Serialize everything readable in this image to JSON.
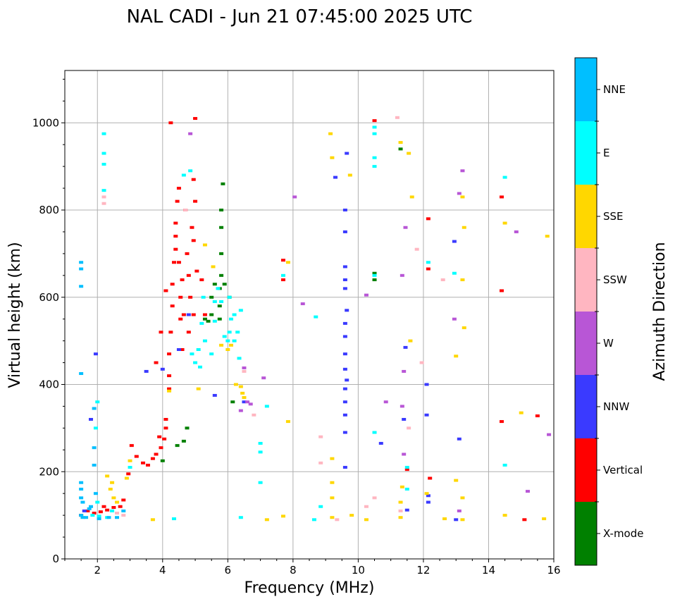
{
  "chart_data": {
    "type": "scatter",
    "title": "NAL CADI - Jun 21 07:45:00 2025 UTC",
    "xlabel": "Frequency (MHz)",
    "ylabel": "Virtual height (km)",
    "xlim": [
      1,
      16
    ],
    "ylim": [
      0,
      1120
    ],
    "xticks": [
      2,
      4,
      6,
      8,
      10,
      12,
      14,
      16
    ],
    "yticks": [
      0,
      200,
      400,
      600,
      800,
      1000
    ],
    "grid": true,
    "colorbar": {
      "label": "Azimuth Direction",
      "categories": [
        {
          "name": "X-mode",
          "color": "#008000"
        },
        {
          "name": "Vertical",
          "color": "#ff0000"
        },
        {
          "name": "NNW",
          "color": "#3a3aff"
        },
        {
          "name": "W",
          "color": "#b856d6"
        },
        {
          "name": "SSW",
          "color": "#ffb6c1"
        },
        {
          "name": "SSE",
          "color": "#ffd700"
        },
        {
          "name": "E",
          "color": "#00ffff"
        },
        {
          "name": "NNE",
          "color": "#00bfff"
        }
      ]
    },
    "series": [
      {
        "name": "X-mode",
        "points": [
          [
            5.75,
            550
          ],
          [
            5.75,
            580
          ],
          [
            5.75,
            620
          ],
          [
            5.8,
            650
          ],
          [
            5.8,
            700
          ],
          [
            5.8,
            760
          ],
          [
            5.8,
            800
          ],
          [
            5.85,
            860
          ],
          [
            5.5,
            560
          ],
          [
            5.5,
            600
          ],
          [
            5.6,
            630
          ],
          [
            5.4,
            545
          ],
          [
            5.3,
            550
          ],
          [
            6.05,
            600
          ],
          [
            6.15,
            360
          ],
          [
            4.75,
            300
          ],
          [
            4.65,
            270
          ],
          [
            4.45,
            260
          ],
          [
            4.0,
            225
          ],
          [
            10.5,
            640
          ],
          [
            10.5,
            655
          ],
          [
            11.3,
            940
          ],
          [
            5.9,
            630
          ]
        ]
      },
      {
        "name": "Vertical",
        "points": [
          [
            1.5,
            100
          ],
          [
            1.7,
            110
          ],
          [
            1.9,
            105
          ],
          [
            2.1,
            108
          ],
          [
            2.3,
            112
          ],
          [
            2.5,
            118
          ],
          [
            2.7,
            120
          ],
          [
            2.8,
            135
          ],
          [
            2.2,
            120
          ],
          [
            2.95,
            195
          ],
          [
            3.05,
            260
          ],
          [
            3.2,
            235
          ],
          [
            3.4,
            220
          ],
          [
            3.55,
            215
          ],
          [
            3.7,
            230
          ],
          [
            3.8,
            240
          ],
          [
            3.95,
            255
          ],
          [
            4.05,
            275
          ],
          [
            4.1,
            300
          ],
          [
            4.1,
            320
          ],
          [
            3.9,
            280
          ],
          [
            3.8,
            450
          ],
          [
            3.95,
            520
          ],
          [
            4.2,
            420
          ],
          [
            4.2,
            470
          ],
          [
            4.25,
            520
          ],
          [
            4.3,
            580
          ],
          [
            4.3,
            630
          ],
          [
            4.35,
            680
          ],
          [
            4.4,
            710
          ],
          [
            4.4,
            770
          ],
          [
            4.45,
            820
          ],
          [
            4.5,
            850
          ],
          [
            4.55,
            600
          ],
          [
            4.6,
            640
          ],
          [
            4.65,
            560
          ],
          [
            4.6,
            480
          ],
          [
            4.75,
            700
          ],
          [
            4.8,
            650
          ],
          [
            4.85,
            600
          ],
          [
            4.9,
            760
          ],
          [
            4.95,
            730
          ],
          [
            5.0,
            820
          ],
          [
            4.95,
            870
          ],
          [
            5.0,
            1010
          ],
          [
            4.25,
            1000
          ],
          [
            4.5,
            680
          ],
          [
            4.7,
            800
          ],
          [
            4.95,
            560
          ],
          [
            5.05,
            660
          ],
          [
            4.8,
            520
          ],
          [
            4.4,
            740
          ],
          [
            4.55,
            550
          ],
          [
            5.2,
            640
          ],
          [
            5.3,
            560
          ],
          [
            7.7,
            640
          ],
          [
            7.7,
            685
          ],
          [
            10.5,
            1005
          ],
          [
            12.15,
            780
          ],
          [
            12.15,
            665
          ],
          [
            12.2,
            185
          ],
          [
            14.4,
            830
          ],
          [
            14.4,
            615
          ],
          [
            14.4,
            315
          ],
          [
            15.1,
            90
          ],
          [
            15.5,
            328
          ],
          [
            11.5,
            205
          ],
          [
            4.2,
            390
          ],
          [
            4.1,
            615
          ]
        ]
      },
      {
        "name": "NNW",
        "points": [
          [
            9.65,
            930
          ],
          [
            9.6,
            800
          ],
          [
            9.6,
            750
          ],
          [
            9.6,
            670
          ],
          [
            9.6,
            640
          ],
          [
            9.6,
            620
          ],
          [
            9.65,
            570
          ],
          [
            9.6,
            540
          ],
          [
            9.6,
            510
          ],
          [
            9.6,
            470
          ],
          [
            9.6,
            435
          ],
          [
            9.65,
            410
          ],
          [
            9.6,
            390
          ],
          [
            9.6,
            360
          ],
          [
            9.6,
            330
          ],
          [
            9.6,
            290
          ],
          [
            9.6,
            210
          ],
          [
            9.3,
            875
          ],
          [
            12.95,
            728
          ],
          [
            13.1,
            275
          ],
          [
            13.0,
            90
          ],
          [
            12.1,
            400
          ],
          [
            12.1,
            330
          ],
          [
            11.4,
            320
          ],
          [
            11.45,
            485
          ],
          [
            11.5,
            112
          ],
          [
            12.15,
            145
          ],
          [
            12.15,
            130
          ],
          [
            10.7,
            265
          ],
          [
            5.6,
            375
          ],
          [
            6.5,
            360
          ],
          [
            4.0,
            435
          ],
          [
            4.5,
            480
          ],
          [
            4.8,
            560
          ],
          [
            3.5,
            430
          ],
          [
            1.6,
            110
          ],
          [
            1.8,
            320
          ],
          [
            1.95,
            470
          ]
        ]
      },
      {
        "name": "W",
        "points": [
          [
            4.85,
            975
          ],
          [
            6.5,
            438
          ],
          [
            6.4,
            340
          ],
          [
            6.6,
            360
          ],
          [
            6.7,
            355
          ],
          [
            8.3,
            585
          ],
          [
            10.25,
            605
          ],
          [
            10.85,
            360
          ],
          [
            11.35,
            650
          ],
          [
            11.45,
            760
          ],
          [
            11.4,
            430
          ],
          [
            11.4,
            240
          ],
          [
            11.35,
            350
          ],
          [
            12.95,
            550
          ],
          [
            13.1,
            838
          ],
          [
            13.2,
            890
          ],
          [
            13.1,
            110
          ],
          [
            14.85,
            750
          ],
          [
            15.2,
            155
          ],
          [
            15.85,
            285
          ],
          [
            7.1,
            415
          ],
          [
            8.05,
            830
          ]
        ]
      },
      {
        "name": "SSW",
        "points": [
          [
            2.2,
            815
          ],
          [
            2.2,
            830
          ],
          [
            6.5,
            430
          ],
          [
            6.8,
            330
          ],
          [
            8.85,
            280
          ],
          [
            8.85,
            220
          ],
          [
            9.35,
            90
          ],
          [
            10.25,
            120
          ],
          [
            10.5,
            140
          ],
          [
            11.2,
            1012
          ],
          [
            11.3,
            110
          ],
          [
            11.55,
            300
          ],
          [
            11.8,
            710
          ],
          [
            11.95,
            450
          ],
          [
            12.6,
            640
          ],
          [
            4.7,
            800
          ],
          [
            2.8,
            100
          ],
          [
            2.6,
            105
          ]
        ]
      },
      {
        "name": "SSE",
        "points": [
          [
            2.4,
            160
          ],
          [
            2.45,
            175
          ],
          [
            2.5,
            140
          ],
          [
            2.3,
            190
          ],
          [
            2.6,
            130
          ],
          [
            2.9,
            185
          ],
          [
            3.0,
            225
          ],
          [
            3.7,
            90
          ],
          [
            4.2,
            385
          ],
          [
            5.1,
            390
          ],
          [
            5.8,
            490
          ],
          [
            6.0,
            480
          ],
          [
            6.1,
            490
          ],
          [
            6.25,
            400
          ],
          [
            6.4,
            395
          ],
          [
            6.45,
            380
          ],
          [
            6.5,
            370
          ],
          [
            7.2,
            90
          ],
          [
            7.7,
            98
          ],
          [
            7.85,
            315
          ],
          [
            7.85,
            680
          ],
          [
            9.15,
            975
          ],
          [
            9.2,
            920
          ],
          [
            9.2,
            230
          ],
          [
            9.2,
            175
          ],
          [
            9.2,
            140
          ],
          [
            9.2,
            95
          ],
          [
            9.75,
            880
          ],
          [
            9.8,
            100
          ],
          [
            10.25,
            90
          ],
          [
            11.3,
            95
          ],
          [
            11.3,
            130
          ],
          [
            11.35,
            165
          ],
          [
            11.3,
            955
          ],
          [
            11.55,
            930
          ],
          [
            11.6,
            500
          ],
          [
            11.65,
            830
          ],
          [
            12.1,
            150
          ],
          [
            12.65,
            92
          ],
          [
            13.0,
            180
          ],
          [
            13.0,
            465
          ],
          [
            13.2,
            640
          ],
          [
            13.25,
            530
          ],
          [
            13.25,
            760
          ],
          [
            13.2,
            830
          ],
          [
            13.2,
            140
          ],
          [
            13.2,
            90
          ],
          [
            14.5,
            770
          ],
          [
            14.5,
            100
          ],
          [
            15.0,
            335
          ],
          [
            15.8,
            740
          ],
          [
            15.7,
            92
          ],
          [
            5.3,
            720
          ],
          [
            5.55,
            670
          ]
        ]
      },
      {
        "name": "E",
        "points": [
          [
            2.2,
            975
          ],
          [
            2.2,
            930
          ],
          [
            2.2,
            905
          ],
          [
            2.2,
            845
          ],
          [
            1.85,
            100
          ],
          [
            2.05,
            98
          ],
          [
            2.3,
            95
          ],
          [
            2.45,
            110
          ],
          [
            2.0,
            130
          ],
          [
            1.95,
            300
          ],
          [
            2.0,
            360
          ],
          [
            3.0,
            210
          ],
          [
            4.35,
            92
          ],
          [
            4.65,
            880
          ],
          [
            4.85,
            890
          ],
          [
            4.9,
            470
          ],
          [
            5.0,
            450
          ],
          [
            5.1,
            480
          ],
          [
            5.15,
            440
          ],
          [
            5.2,
            540
          ],
          [
            5.3,
            500
          ],
          [
            5.5,
            470
          ],
          [
            5.6,
            545
          ],
          [
            6.0,
            500
          ],
          [
            6.05,
            520
          ],
          [
            6.1,
            550
          ],
          [
            6.2,
            500
          ],
          [
            6.3,
            520
          ],
          [
            6.4,
            570
          ],
          [
            6.2,
            560
          ],
          [
            5.8,
            590
          ],
          [
            5.9,
            510
          ],
          [
            6.05,
            600
          ],
          [
            6.35,
            460
          ],
          [
            6.4,
            95
          ],
          [
            7.0,
            175
          ],
          [
            7.0,
            265
          ],
          [
            7.0,
            245
          ],
          [
            7.2,
            350
          ],
          [
            7.7,
            650
          ],
          [
            8.7,
            555
          ],
          [
            8.65,
            90
          ],
          [
            8.85,
            120
          ],
          [
            10.5,
            990
          ],
          [
            10.5,
            975
          ],
          [
            10.5,
            920
          ],
          [
            10.5,
            900
          ],
          [
            10.5,
            290
          ],
          [
            10.5,
            650
          ],
          [
            11.5,
            210
          ],
          [
            11.5,
            160
          ],
          [
            12.15,
            680
          ],
          [
            12.95,
            655
          ],
          [
            14.5,
            875
          ],
          [
            14.5,
            215
          ],
          [
            5.25,
            600
          ],
          [
            5.6,
            590
          ],
          [
            5.7,
            620
          ]
        ]
      },
      {
        "name": "NNE",
        "points": [
          [
            1.5,
            680
          ],
          [
            1.5,
            665
          ],
          [
            1.5,
            625
          ],
          [
            1.5,
            425
          ],
          [
            1.5,
            175
          ],
          [
            1.5,
            160
          ],
          [
            1.5,
            140
          ],
          [
            1.5,
            100
          ],
          [
            1.55,
            95
          ],
          [
            1.65,
            95
          ],
          [
            1.75,
            115
          ],
          [
            1.9,
            345
          ],
          [
            1.9,
            255
          ],
          [
            1.9,
            215
          ],
          [
            1.95,
            150
          ],
          [
            2.05,
            92
          ],
          [
            2.35,
            95
          ],
          [
            2.6,
            95
          ],
          [
            2.8,
            110
          ],
          [
            1.55,
            130
          ],
          [
            1.8,
            120
          ]
        ]
      }
    ]
  }
}
